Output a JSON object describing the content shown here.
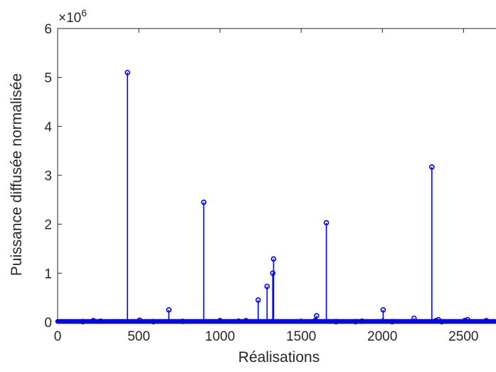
{
  "chart_data": {
    "type": "stem",
    "title": "",
    "xlabel": "Réalisations",
    "ylabel": "Puissance diffusée normalisée",
    "y_exponent_label": "×10",
    "y_exponent_power": "6",
    "xlim": [
      0,
      2700
    ],
    "ylim": [
      0,
      6
    ],
    "y_scale_factor": 1000000,
    "x_ticks": [
      0,
      500,
      1000,
      1500,
      2000,
      2500
    ],
    "y_ticks": [
      0,
      1,
      2,
      3,
      4,
      5,
      6
    ],
    "x_tick_labels": [
      "0",
      "500",
      "1000",
      "1500",
      "2000",
      "2500"
    ],
    "y_tick_labels": [
      "0",
      "1",
      "2",
      "3",
      "4",
      "5",
      "6"
    ],
    "grid": false,
    "baseline_count": 2700,
    "color": "#0000ff",
    "series": [
      {
        "x": [
          155,
          220,
          265,
          430,
          505,
          590,
          685,
          770,
          900,
          1000,
          1115,
          1160,
          1235,
          1290,
          1325,
          1330,
          1585,
          1595,
          1655,
          1715,
          1835,
          1875,
          2005,
          2060,
          2195,
          2305,
          2330,
          2345,
          2365,
          2510,
          2525,
          2640
        ],
        "y": [
          10000,
          30000,
          20000,
          5100000,
          40000,
          10000,
          250000,
          15000,
          2450000,
          30000,
          20000,
          30000,
          450000,
          730000,
          1000000,
          1290000,
          30000,
          130000,
          2030000,
          10000,
          10000,
          20000,
          250000,
          10000,
          80000,
          3170000,
          30000,
          50000,
          10000,
          30000,
          50000,
          30000
        ]
      }
    ]
  }
}
